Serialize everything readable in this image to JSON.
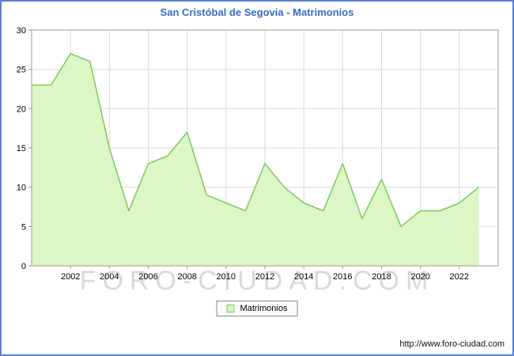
{
  "frame": {
    "border_color": "#5b7fd4",
    "background": "#ffffff"
  },
  "header": {
    "title": "San Cristóbal de Segovia - Matrimonios",
    "title_color": "#3a6bc4"
  },
  "chart_data": {
    "type": "area",
    "title": "San Cristóbal de Segovia - Matrimonios",
    "x": [
      2000,
      2001,
      2002,
      2003,
      2004,
      2005,
      2006,
      2007,
      2008,
      2009,
      2010,
      2011,
      2012,
      2013,
      2014,
      2015,
      2016,
      2017,
      2018,
      2019,
      2020,
      2021,
      2022,
      2023
    ],
    "values": [
      23,
      23,
      27,
      26,
      15,
      7,
      13,
      14,
      17,
      9,
      8,
      7,
      13,
      10,
      8,
      7,
      13,
      6,
      11,
      5,
      7,
      7,
      8,
      10
    ],
    "series_name": "Matrimonios",
    "xlabel": "",
    "ylabel": "",
    "xlim": [
      2000,
      2024
    ],
    "ylim": [
      0,
      30
    ],
    "xticks": [
      2002,
      2004,
      2006,
      2008,
      2010,
      2012,
      2014,
      2016,
      2018,
      2020,
      2022
    ],
    "yticks": [
      0,
      5,
      10,
      15,
      20,
      25,
      30
    ],
    "grid": true,
    "grid_color": "#d9d9d9",
    "axis_color": "#9a9a9a",
    "text_color": "#000000",
    "fill_color": "#ddf6c5",
    "line_color": "#7dc95e",
    "legend": {
      "label": "Matrimonios",
      "position": "bottom-center"
    }
  },
  "watermark": {
    "text": "FORO-CIUDAD.COM",
    "color": "#d9d9d9"
  },
  "footer": {
    "url": "http://www.foro-ciudad.com"
  }
}
